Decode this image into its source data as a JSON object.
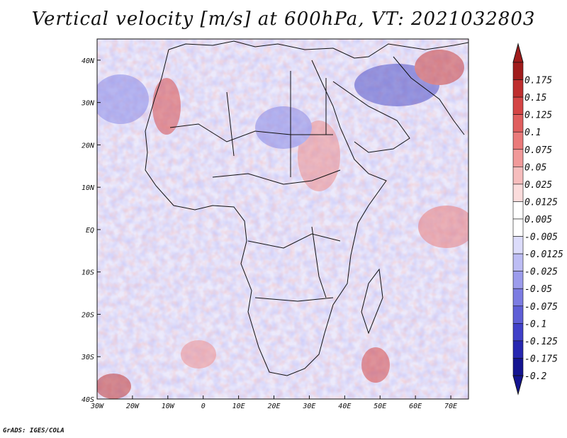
{
  "title": "Vertical velocity [m/s] at 600hPa, VT: 2021032803",
  "credit": "GrADS: IGES/COLA",
  "map": {
    "lon_range": [
      -30,
      75
    ],
    "lat_range": [
      -40,
      45
    ],
    "lat_ticks": [
      "40N",
      "30N",
      "20N",
      "10N",
      "EQ",
      "10S",
      "20S",
      "30S",
      "40S"
    ],
    "lon_ticks": [
      "30W",
      "20W",
      "10W",
      "0",
      "10E",
      "20E",
      "30E",
      "40E",
      "50E",
      "60E",
      "70E"
    ]
  },
  "colorbar": {
    "labels": [
      "0.175",
      "0.15",
      "0.125",
      "0.1",
      "0.075",
      "0.05",
      "0.025",
      "0.0125",
      "0.005",
      "-0.005",
      "-0.0125",
      "-0.025",
      "-0.05",
      "-0.075",
      "-0.1",
      "-0.125",
      "-0.175",
      "-0.2"
    ],
    "colors": [
      "#a01c1c",
      "#be2e2e",
      "#d44545",
      "#e05e5e",
      "#ea7a7a",
      "#f19a9a",
      "#f6bdbd",
      "#fbdcdc",
      "#ffffff",
      "#ffffff",
      "#dcdcfb",
      "#bdbdf4",
      "#9c9cec",
      "#7c7ce2",
      "#5e5ed6",
      "#4040c8",
      "#2626b0",
      "#141490"
    ]
  }
}
